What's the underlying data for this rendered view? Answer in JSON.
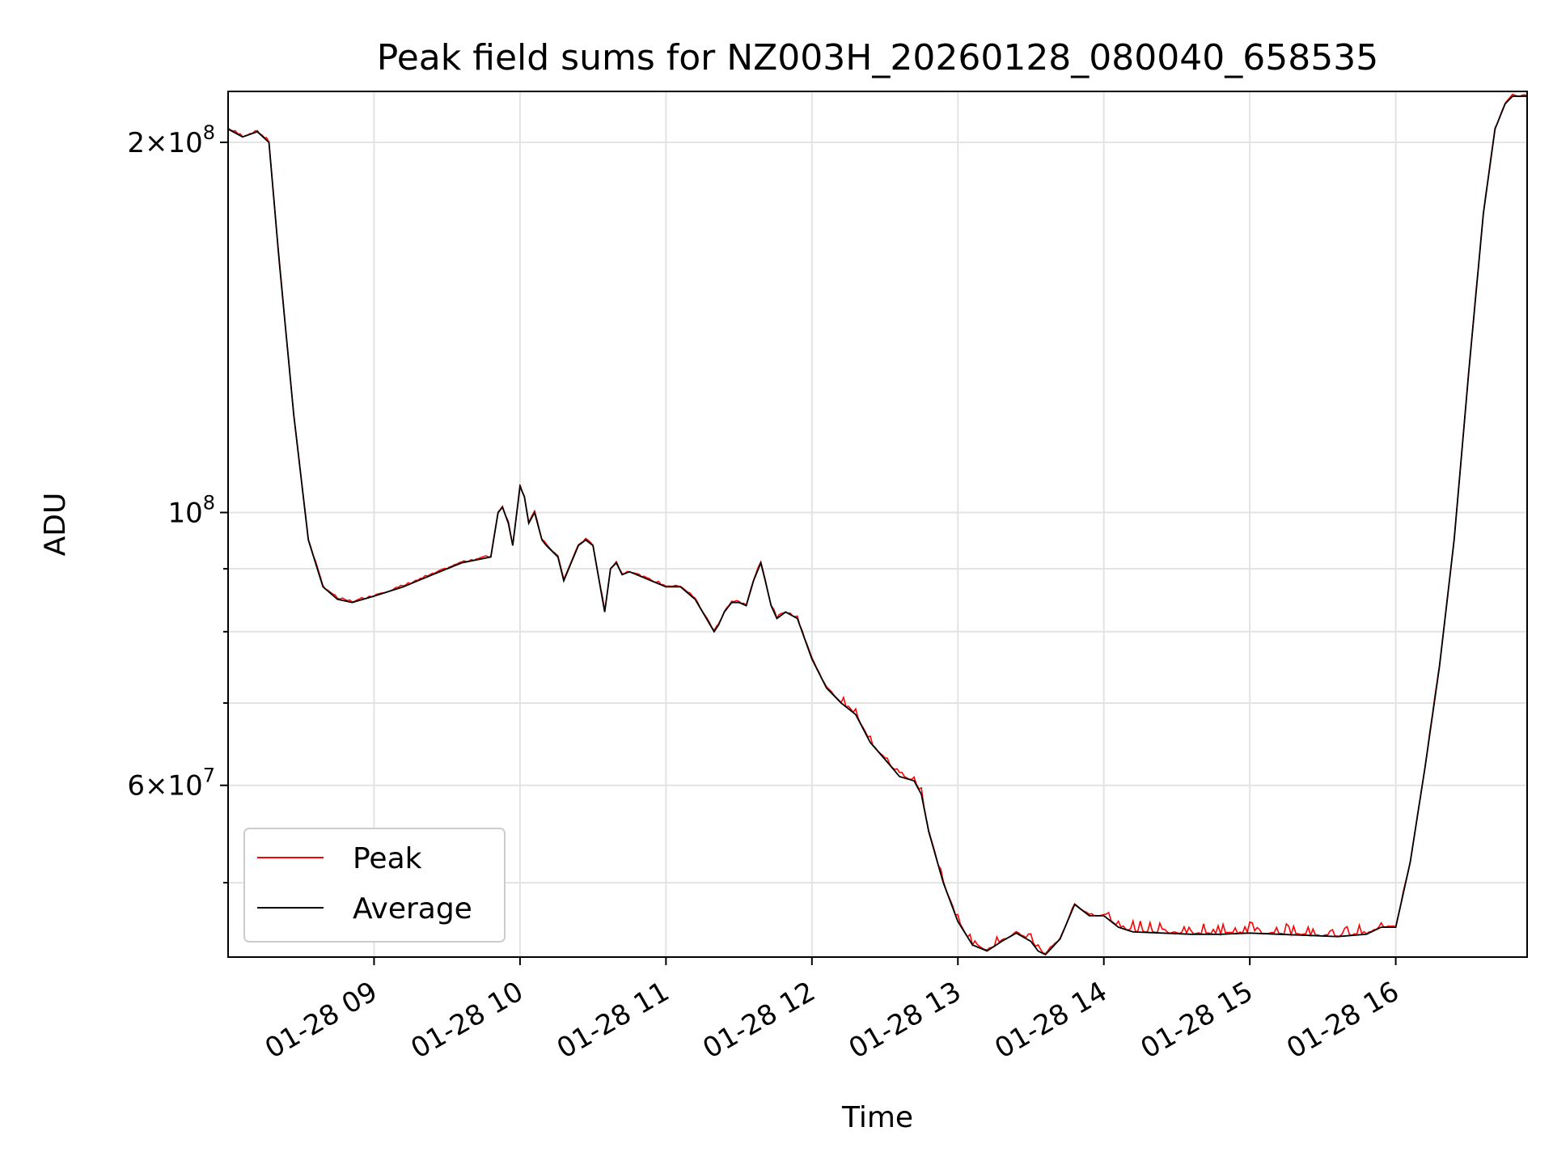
{
  "chart_data": {
    "type": "line",
    "title": "Peak field sums for NZ003H_20260128_080040_658535",
    "xlabel": "Time",
    "ylabel": "ADU",
    "yscale": "log",
    "xlim_hours": [
      8.0,
      16.9
    ],
    "ylim": [
      43500000,
      220000000
    ],
    "grid": true,
    "legend_position": "lower-left",
    "x_ticks": [
      {
        "value": 9,
        "label": "01-28 09"
      },
      {
        "value": 10,
        "label": "01-28 10"
      },
      {
        "value": 11,
        "label": "01-28 11"
      },
      {
        "value": 12,
        "label": "01-28 12"
      },
      {
        "value": 13,
        "label": "01-28 13"
      },
      {
        "value": 14,
        "label": "01-28 14"
      },
      {
        "value": 15,
        "label": "01-28 15"
      },
      {
        "value": 16,
        "label": "01-28 16"
      }
    ],
    "y_major_ticks": [
      {
        "value": 200000000,
        "mantissa": "2",
        "exp": "8"
      },
      {
        "value": 100000000,
        "mantissa": "",
        "exp": "8"
      },
      {
        "value": 60000000,
        "mantissa": "6",
        "exp": "7"
      }
    ],
    "y_minor_ticks": [
      50000000,
      70000000,
      80000000,
      90000000
    ],
    "average_series": {
      "name": "Average",
      "color": "#000000",
      "x": [
        8.0,
        8.1,
        8.2,
        8.28,
        8.35,
        8.45,
        8.55,
        8.65,
        8.75,
        8.85,
        9.0,
        9.2,
        9.4,
        9.6,
        9.8,
        9.85,
        9.88,
        9.92,
        9.95,
        10.0,
        10.03,
        10.06,
        10.1,
        10.15,
        10.18,
        10.22,
        10.26,
        10.3,
        10.35,
        10.4,
        10.45,
        10.5,
        10.55,
        10.58,
        10.62,
        10.66,
        10.7,
        10.75,
        10.8,
        10.9,
        11.0,
        11.1,
        11.2,
        11.33,
        11.36,
        11.4,
        11.45,
        11.5,
        11.55,
        11.6,
        11.65,
        11.68,
        11.72,
        11.76,
        11.82,
        11.9,
        12.0,
        12.1,
        12.2,
        12.3,
        12.4,
        12.5,
        12.55,
        12.6,
        12.7,
        12.75,
        12.8,
        12.9,
        13.0,
        13.1,
        13.2,
        13.3,
        13.4,
        13.5,
        13.55,
        13.6,
        13.7,
        13.8,
        13.9,
        14.0,
        14.1,
        14.2,
        14.4,
        14.6,
        14.8,
        15.0,
        15.2,
        15.4,
        15.6,
        15.8,
        15.9,
        16.0,
        16.1,
        16.2,
        16.3,
        16.4,
        16.5,
        16.6,
        16.68,
        16.75,
        16.8,
        16.9
      ],
      "values": [
        205000000,
        202000000,
        204000000,
        200000000,
        160000000,
        120000000,
        95000000,
        87000000,
        85000000,
        84500000,
        85500000,
        87000000,
        89000000,
        91000000,
        92000000,
        100000000,
        101000000,
        98000000,
        94000000,
        105000000,
        103000000,
        98000000,
        100000000,
        95000000,
        94000000,
        93000000,
        92000000,
        88000000,
        91000000,
        94000000,
        95000000,
        94000000,
        87000000,
        83000000,
        90000000,
        91000000,
        89000000,
        89500000,
        89000000,
        88000000,
        87000000,
        87000000,
        85000000,
        80000000,
        81000000,
        83000000,
        84500000,
        84500000,
        84000000,
        88000000,
        91000000,
        88000000,
        84000000,
        82000000,
        83000000,
        82000000,
        76000000,
        72000000,
        70000000,
        68500000,
        65000000,
        63000000,
        62000000,
        61000000,
        60500000,
        59000000,
        55000000,
        50000000,
        46500000,
        44500000,
        44000000,
        44800000,
        45500000,
        44800000,
        44000000,
        43700000,
        45000000,
        48000000,
        47000000,
        47000000,
        46000000,
        45600000,
        45500000,
        45400000,
        45400000,
        45500000,
        45400000,
        45300000,
        45200000,
        45400000,
        46000000,
        46000000,
        52000000,
        62000000,
        75000000,
        95000000,
        130000000,
        175000000,
        205000000,
        215000000,
        218000000,
        218000000
      ]
    },
    "peak_series": {
      "name": "Peak",
      "color": "#ff0000"
    }
  }
}
